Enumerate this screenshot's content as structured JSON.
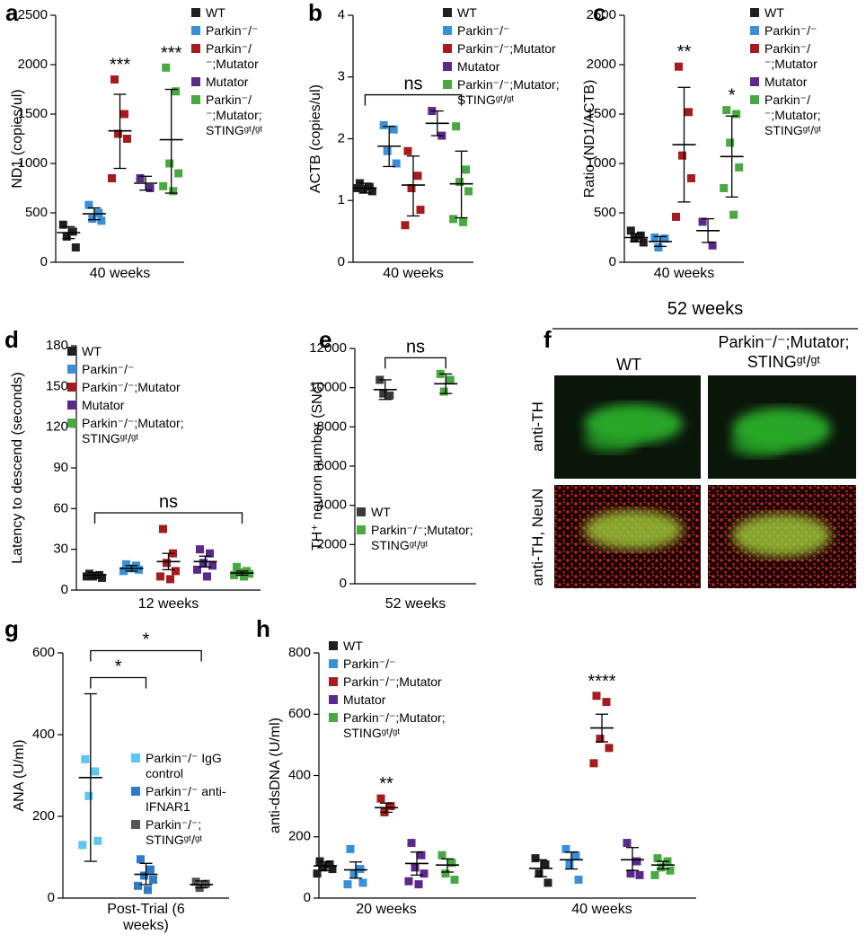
{
  "chart_data": [
    {
      "type": "dotplot",
      "label": "a",
      "ylabel": "ND1 (copies/ul)",
      "categories": [
        "40 weeks"
      ],
      "ylim": [
        0,
        2500
      ],
      "yticks": [
        0,
        500,
        1000,
        1500,
        2000,
        2500
      ],
      "series": [
        {
          "name": "WT",
          "color": "#231f20",
          "values": [
            [
              380,
              310,
              260,
              150
            ]
          ],
          "mean": [
            300
          ],
          "error": [
            [
              240,
              360
            ]
          ]
        },
        {
          "name": "Parkin⁻/⁻",
          "color": "#3b8fd6",
          "values": [
            [
              580,
              500,
              440,
              420
            ]
          ],
          "mean": [
            490
          ],
          "error": [
            [
              430,
              550
            ]
          ]
        },
        {
          "name": "Parkin⁻/⁻;Mutator",
          "color": "#a51c1f",
          "values": [
            [
              1850,
              1500,
              1300,
              1250,
              850
            ]
          ],
          "mean": [
            1330
          ],
          "error": [
            [
              950,
              1700
            ]
          ]
        },
        {
          "name": "Mutator",
          "color": "#5a2a8a",
          "values": [
            [
              850,
              750
            ]
          ],
          "mean": [
            800
          ],
          "error": [
            [
              730,
              870
            ]
          ]
        },
        {
          "name": "Parkin⁻/⁻;Mutator; STINGᵍᵗ/ᵍᵗ",
          "color": "#4aa843",
          "values": [
            [
              1970,
              1730,
              1000,
              900,
              770,
              720
            ]
          ],
          "mean": [
            1240
          ],
          "error": [
            [
              700,
              1750
            ]
          ]
        }
      ],
      "annotations": [
        {
          "text": "***",
          "series": 2
        },
        {
          "text": "***",
          "series": 4
        }
      ]
    },
    {
      "type": "dotplot",
      "label": "b",
      "ylabel": "ACTB (copies/ul)",
      "categories": [
        "40 weeks"
      ],
      "ylim": [
        0,
        4
      ],
      "yticks": [
        0,
        1,
        2,
        3,
        4
      ],
      "series": [
        {
          "name": "WT",
          "color": "#231f20",
          "values": [
            [
              1.28,
              1.22,
              1.18,
              1.15,
              1.2
            ]
          ],
          "mean": [
            1.2
          ],
          "error": [
            [
              1.12,
              1.28
            ]
          ]
        },
        {
          "name": "Parkin⁻/⁻",
          "color": "#3b8fd6",
          "values": [
            [
              2.22,
              2.15,
              1.8,
              1.6
            ]
          ],
          "mean": [
            1.88
          ],
          "error": [
            [
              1.55,
              2.2
            ]
          ]
        },
        {
          "name": "Parkin⁻/⁻;Mutator",
          "color": "#a51c1f",
          "values": [
            [
              1.8,
              1.4,
              1.2,
              0.85,
              0.6
            ]
          ],
          "mean": [
            1.25
          ],
          "error": [
            [
              0.75,
              1.72
            ]
          ]
        },
        {
          "name": "Mutator",
          "color": "#5a2a8a",
          "values": [
            [
              2.45,
              2.05
            ]
          ],
          "mean": [
            2.25
          ],
          "error": [
            [
              2.05,
              2.45
            ]
          ]
        },
        {
          "name": "Parkin⁻/⁻;Mutator; STINGᵍᵗ/ᵍᵗ",
          "color": "#4aa843",
          "values": [
            [
              2.2,
              1.5,
              1.3,
              1.15,
              0.7,
              0.65
            ]
          ],
          "mean": [
            1.27
          ],
          "error": [
            [
              0.72,
              1.8
            ]
          ]
        }
      ],
      "brackets": [
        {
          "text": "ns",
          "from": 0,
          "to": 4
        }
      ]
    },
    {
      "type": "dotplot",
      "label": "c",
      "ylabel": "Ratio (ND1/ACTB)",
      "categories": [
        "40 weeks"
      ],
      "ylim": [
        0,
        2500
      ],
      "yticks": [
        0,
        500,
        1000,
        1500,
        2000,
        2500
      ],
      "series": [
        {
          "name": "WT",
          "color": "#231f20",
          "values": [
            [
              320,
              270,
              240,
              200
            ]
          ],
          "mean": [
            250
          ],
          "error": [
            [
              210,
              290
            ]
          ]
        },
        {
          "name": "Parkin⁻/⁻",
          "color": "#3b8fd6",
          "values": [
            [
              250,
              240,
              150
            ]
          ],
          "mean": [
            210
          ],
          "error": [
            [
              160,
              260
            ]
          ]
        },
        {
          "name": "Parkin⁻/⁻;Mutator",
          "color": "#a51c1f",
          "values": [
            [
              1980,
              1520,
              1080,
              850,
              460
            ]
          ],
          "mean": [
            1190
          ],
          "error": [
            [
              610,
              1770
            ]
          ]
        },
        {
          "name": "Mutator",
          "color": "#5a2a8a",
          "values": [
            [
              410,
              170
            ]
          ],
          "mean": [
            320
          ],
          "error": [
            [
              200,
              440
            ]
          ]
        },
        {
          "name": "Parkin⁻/⁻;Mutator; STINGᵍᵗ/ᵍᵗ",
          "color": "#4aa843",
          "values": [
            [
              1540,
              1500,
              1210,
              960,
              750,
              480
            ]
          ],
          "mean": [
            1070
          ],
          "error": [
            [
              660,
              1480
            ]
          ]
        }
      ],
      "annotations": [
        {
          "text": "**",
          "series": 2
        },
        {
          "text": "*",
          "series": 4
        }
      ]
    },
    {
      "type": "dotplot",
      "label": "d",
      "ylabel": "Latency to descend (seconds)",
      "categories": [
        "12 weeks"
      ],
      "ylim": [
        0,
        180
      ],
      "yticks": [
        0,
        30,
        60,
        90,
        120,
        150,
        180
      ],
      "series": [
        {
          "name": "WT",
          "color": "#231f20",
          "values": [
            [
              12,
              11,
              10,
              9,
              10
            ]
          ],
          "mean": [
            11
          ],
          "error": [
            [
              9,
              13
            ]
          ]
        },
        {
          "name": "Parkin⁻/⁻",
          "color": "#3b8fd6",
          "values": [
            [
              19,
              18,
              16,
              15,
              14,
              16
            ]
          ],
          "mean": [
            16
          ],
          "error": [
            [
              14,
              18
            ]
          ]
        },
        {
          "name": "Parkin⁻/⁻;Mutator",
          "color": "#a51c1f",
          "values": [
            [
              45,
              27,
              20,
              14,
              10,
              8
            ]
          ],
          "mean": [
            21
          ],
          "error": [
            [
              15,
              27
            ]
          ]
        },
        {
          "name": "Mutator",
          "color": "#5a2a8a",
          "values": [
            [
              30,
              27,
              20,
              18,
              15,
              10
            ]
          ],
          "mean": [
            21
          ],
          "error": [
            [
              17,
              25
            ]
          ]
        },
        {
          "name": "Parkin⁻/⁻;Mutator; STINGᵍᵗ/ᵍᵗ",
          "color": "#4aa843",
          "values": [
            [
              17,
              14,
              13,
              12,
              11,
              10
            ]
          ],
          "mean": [
            12.5
          ],
          "error": [
            [
              11,
              14
            ]
          ]
        }
      ],
      "brackets": [
        {
          "text": "ns",
          "from": 0,
          "to": 4
        }
      ]
    },
    {
      "type": "dotplot",
      "label": "e",
      "ylabel": "TH⁺ neuron number (SNc)",
      "categories": [
        "52 weeks"
      ],
      "ylim": [
        0,
        12000
      ],
      "yticks": [
        0,
        2000,
        4000,
        6000,
        8000,
        10000,
        12000
      ],
      "series": [
        {
          "name": "WT",
          "color": "#3a3a3a",
          "values": [
            [
              10400,
              9600,
              9700
            ]
          ],
          "mean": [
            9900
          ],
          "error": [
            [
              9400,
              10400
            ]
          ]
        },
        {
          "name": "Parkin⁻/⁻;Mutator; STINGᵍᵗ/ᵍᵗ",
          "color": "#4aa843",
          "values": [
            [
              10700,
              10400,
              9800
            ]
          ],
          "mean": [
            10200
          ],
          "error": [
            [
              9700,
              10700
            ]
          ]
        }
      ],
      "brackets": [
        {
          "text": "ns",
          "from": 0,
          "to": 1
        }
      ]
    },
    {
      "type": "dotplot",
      "label": "g",
      "ylabel": "ANA (U/ml)",
      "categories": [
        "Post-Trial (6 weeks)"
      ],
      "ylim": [
        0,
        600
      ],
      "yticks": [
        0,
        200,
        400,
        600
      ],
      "series": [
        {
          "name": "Parkin⁻/⁻ IgG control",
          "color": "#5cc6ee",
          "values": [
            [
              340,
              310,
              250,
              140,
              130
            ]
          ],
          "mean": [
            295
          ],
          "error": [
            [
              90,
              500
            ]
          ]
        },
        {
          "name": "Parkin⁻/⁻ anti-IFNAR1",
          "color": "#2f7cc6",
          "values": [
            [
              95,
              70,
              55,
              45,
              30,
              20
            ]
          ],
          "mean": [
            58
          ],
          "error": [
            [
              33,
              85
            ]
          ]
        },
        {
          "name": "Parkin⁻/⁻; STINGᵍᵗ/ᵍᵗ",
          "color": "#555555",
          "values": [
            [
              40,
              35,
              25
            ]
          ],
          "mean": [
            33
          ],
          "error": [
            [
              25,
              42
            ]
          ]
        }
      ],
      "brackets": [
        {
          "text": "*",
          "from": 0,
          "to": 1
        },
        {
          "text": "*",
          "from": 0,
          "to": 2
        }
      ]
    },
    {
      "type": "dotplot",
      "label": "h",
      "ylabel": "anti-dsDNA (U/ml)",
      "categories": [
        "20 weeks",
        "40 weeks"
      ],
      "ylim": [
        0,
        800
      ],
      "yticks": [
        0,
        200,
        400,
        600,
        800
      ],
      "series": [
        {
          "name": "WT",
          "color": "#231f20",
          "values": [
            [
              120,
              110,
              100,
              95,
              80
            ],
            [
              130,
              110,
              80,
              50
            ]
          ],
          "mean": [
            105,
            97
          ],
          "error": [
            [
              90,
              118
            ],
            [
              70,
              125
            ]
          ]
        },
        {
          "name": "Parkin⁻/⁻",
          "color": "#3b8fd6",
          "values": [
            [
              160,
              95,
              80,
              50,
              45
            ],
            [
              160,
              140,
              110,
              60
            ]
          ],
          "mean": [
            92,
            125
          ],
          "error": [
            [
              65,
              118
            ],
            [
              95,
              150
            ]
          ]
        },
        {
          "name": "Parkin⁻/⁻;Mutator",
          "color": "#a51c1f",
          "values": [
            [
              325,
              300,
              280
            ],
            [
              660,
              640,
              520,
              490,
              440
            ]
          ],
          "mean": [
            295,
            555
          ],
          "error": [
            [
              280,
              310
            ],
            [
              510,
              600
            ]
          ]
        },
        {
          "name": "Mutator",
          "color": "#5a2a8a",
          "values": [
            [
              180,
              140,
              100,
              80,
              55,
              45
            ],
            [
              180,
              120,
              80,
              75
            ]
          ],
          "mean": [
            113,
            125
          ],
          "error": [
            [
              75,
              150
            ],
            [
              90,
              165
            ]
          ]
        },
        {
          "name": "Parkin⁻/⁻;Mutator; STINGᵍᵗ/ᵍᵗ",
          "color": "#4aa843",
          "values": [
            [
              140,
              115,
              80,
              60
            ],
            [
              130,
              120,
              100,
              90,
              75
            ]
          ],
          "mean": [
            108,
            108
          ],
          "error": [
            [
              85,
              128
            ],
            [
              95,
              120
            ]
          ]
        }
      ],
      "annotations": [
        {
          "text": "**",
          "series": 2,
          "category": 0
        },
        {
          "text": "****",
          "series": 2,
          "category": 1
        }
      ]
    }
  ],
  "image_panel": {
    "label": "f",
    "title": "52 weeks",
    "columns": [
      "WT",
      "Parkin⁻/⁻;Mutator; STINGᵍᵗ/ᵍᵗ"
    ],
    "rows": [
      "anti-TH",
      "anti-TH, NeuN"
    ]
  }
}
